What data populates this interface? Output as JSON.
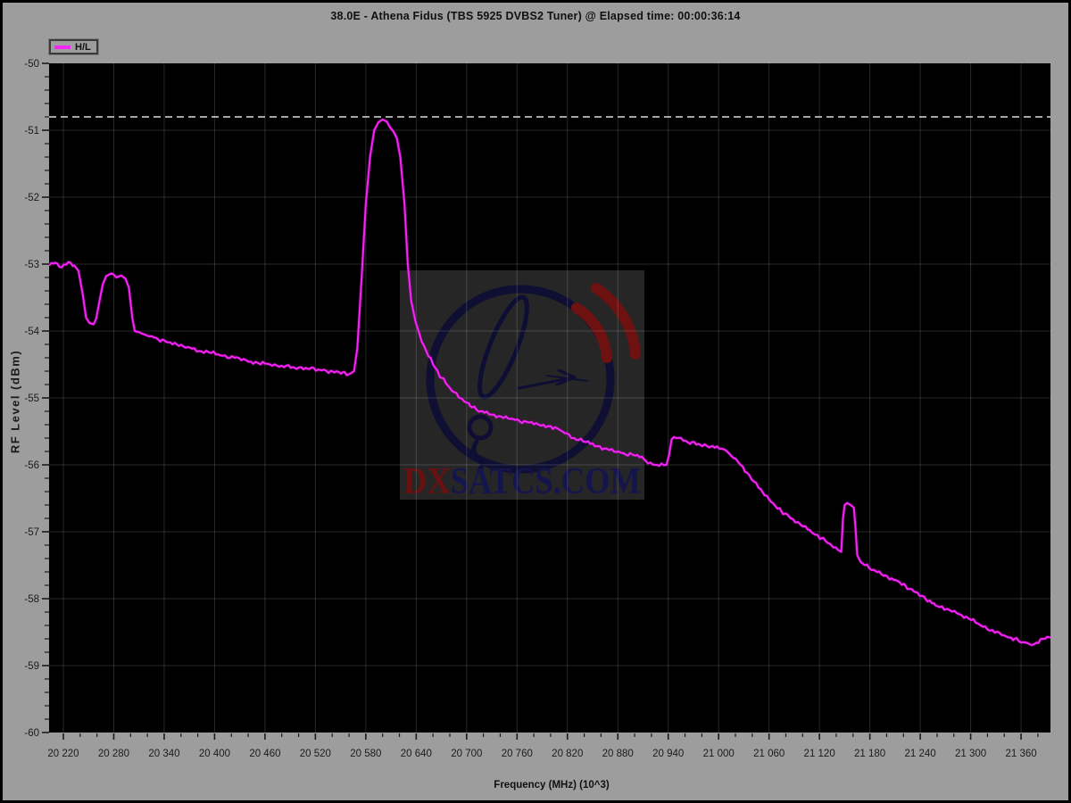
{
  "window": {
    "title": "38.0E - Athena Fidus (TBS 5925 DVBS2 Tuner) @ Elapsed time: 00:00:36:14"
  },
  "legend": {
    "label": "H/L",
    "swatch_color": "#f724f7"
  },
  "axes": {
    "x": {
      "label": "Frequency (MHz) (10^3)",
      "range": [
        20203,
        21395
      ],
      "major_tick_values": [
        20220,
        20280,
        20340,
        20400,
        20460,
        20520,
        20580,
        20640,
        20700,
        20760,
        20820,
        20880,
        20940,
        21000,
        21060,
        21120,
        21180,
        21240,
        21300,
        21360
      ],
      "major_tick_labels": [
        "20 220",
        "20 280",
        "20 340",
        "20 400",
        "20 460",
        "20 520",
        "20 580",
        "20 640",
        "20 700",
        "20 760",
        "20 820",
        "20 880",
        "20 940",
        "21 000",
        "21 060",
        "21 120",
        "21 180",
        "21 240",
        "21 300",
        "21 360"
      ],
      "minor_step": 20
    },
    "y": {
      "label": "RF Level (dBm)",
      "range": [
        -60,
        -50
      ],
      "major_tick_values": [
        -50,
        -51,
        -52,
        -53,
        -54,
        -55,
        -56,
        -57,
        -58,
        -59,
        -60
      ],
      "major_tick_labels": [
        "-50",
        "-51",
        "-52",
        "-53",
        "-54",
        "-55",
        "-56",
        "-57",
        "-58",
        "-59",
        "-60"
      ],
      "minor_step": 0.2
    }
  },
  "threshold_line": {
    "value_dbm": -50.8,
    "style": "dashed",
    "color": "#dedede"
  },
  "watermark": {
    "text_dx": "DX",
    "text_rest": "SATCS.COM",
    "dx_color": "#691111",
    "rest_color": "#15154e",
    "box_color": "#262626",
    "logo_navy": "#0e0e34",
    "logo_red": "#6d1111"
  },
  "colors": {
    "page_bg": "#9d9d9d",
    "plot_bg": "#000000",
    "grid": "rgba(255,255,255,0.16)",
    "tick_text": "#1b1b1b",
    "trace": "#f724f7",
    "trace_glow": "#a800a8"
  },
  "chart_data": {
    "type": "line",
    "title": "38.0E - Athena Fidus (TBS 5925 DVBS2 Tuner) @ Elapsed time: 00:00:36:14",
    "xlabel": "Frequency (MHz) (10^3)",
    "ylabel": "RF Level (dBm)",
    "xlim": [
      20203,
      21395
    ],
    "ylim": [
      -60,
      -50
    ],
    "grid": true,
    "legend_position": "top-left",
    "threshold_dbm": -50.8,
    "render_hints": {
      "noise_db": 0.035,
      "steep_slope_cutoff": 0.04
    },
    "series": [
      {
        "name": "H/L",
        "points": [
          [
            20203,
            -53.02
          ],
          [
            20210,
            -52.98
          ],
          [
            20218,
            -53.05
          ],
          [
            20226,
            -52.97
          ],
          [
            20233,
            -53.02
          ],
          [
            20238,
            -53.1
          ],
          [
            20243,
            -53.45
          ],
          [
            20247,
            -53.8
          ],
          [
            20251,
            -53.88
          ],
          [
            20256,
            -53.9
          ],
          [
            20259,
            -53.82
          ],
          [
            20263,
            -53.55
          ],
          [
            20267,
            -53.3
          ],
          [
            20271,
            -53.18
          ],
          [
            20277,
            -53.14
          ],
          [
            20283,
            -53.2
          ],
          [
            20289,
            -53.17
          ],
          [
            20294,
            -53.22
          ],
          [
            20298,
            -53.35
          ],
          [
            20302,
            -53.8
          ],
          [
            20305,
            -54.0
          ],
          [
            20312,
            -54.03
          ],
          [
            20320,
            -54.07
          ],
          [
            20330,
            -54.1
          ],
          [
            20342,
            -54.16
          ],
          [
            20355,
            -54.2
          ],
          [
            20368,
            -54.24
          ],
          [
            20382,
            -54.3
          ],
          [
            20396,
            -54.33
          ],
          [
            20410,
            -54.37
          ],
          [
            20424,
            -54.4
          ],
          [
            20438,
            -54.44
          ],
          [
            20452,
            -54.48
          ],
          [
            20466,
            -54.5
          ],
          [
            20480,
            -54.52
          ],
          [
            20495,
            -54.55
          ],
          [
            20510,
            -54.56
          ],
          [
            20525,
            -54.58
          ],
          [
            20540,
            -54.6
          ],
          [
            20552,
            -54.62
          ],
          [
            20561,
            -54.64
          ],
          [
            20566,
            -54.6
          ],
          [
            20570,
            -54.25
          ],
          [
            20575,
            -53.2
          ],
          [
            20580,
            -52.1
          ],
          [
            20585,
            -51.4
          ],
          [
            20590,
            -51.0
          ],
          [
            20595,
            -50.88
          ],
          [
            20600,
            -50.84
          ],
          [
            20605,
            -50.87
          ],
          [
            20609,
            -50.96
          ],
          [
            20613,
            -51.02
          ],
          [
            20617,
            -51.12
          ],
          [
            20621,
            -51.4
          ],
          [
            20626,
            -52.1
          ],
          [
            20630,
            -53.0
          ],
          [
            20634,
            -53.55
          ],
          [
            20639,
            -53.85
          ],
          [
            20644,
            -54.05
          ],
          [
            20652,
            -54.3
          ],
          [
            20660,
            -54.5
          ],
          [
            20670,
            -54.7
          ],
          [
            20680,
            -54.85
          ],
          [
            20692,
            -55.0
          ],
          [
            20704,
            -55.12
          ],
          [
            20716,
            -55.2
          ],
          [
            20730,
            -55.25
          ],
          [
            20744,
            -55.3
          ],
          [
            20758,
            -55.33
          ],
          [
            20772,
            -55.36
          ],
          [
            20786,
            -55.4
          ],
          [
            20800,
            -55.42
          ],
          [
            20814,
            -55.5
          ],
          [
            20828,
            -55.6
          ],
          [
            20842,
            -55.66
          ],
          [
            20856,
            -55.72
          ],
          [
            20870,
            -55.78
          ],
          [
            20884,
            -55.82
          ],
          [
            20898,
            -55.85
          ],
          [
            20910,
            -55.9
          ],
          [
            20916,
            -55.98
          ],
          [
            20924,
            -56.0
          ],
          [
            20932,
            -55.98
          ],
          [
            20938,
            -56.0
          ],
          [
            20941,
            -55.85
          ],
          [
            20944,
            -55.62
          ],
          [
            20950,
            -55.6
          ],
          [
            20958,
            -55.64
          ],
          [
            20968,
            -55.66
          ],
          [
            20978,
            -55.7
          ],
          [
            20990,
            -55.73
          ],
          [
            21002,
            -55.76
          ],
          [
            21010,
            -55.8
          ],
          [
            21018,
            -55.9
          ],
          [
            21026,
            -56.0
          ],
          [
            21034,
            -56.12
          ],
          [
            21042,
            -56.25
          ],
          [
            21052,
            -56.4
          ],
          [
            21062,
            -56.55
          ],
          [
            21074,
            -56.68
          ],
          [
            21086,
            -56.8
          ],
          [
            21098,
            -56.9
          ],
          [
            21110,
            -57.0
          ],
          [
            21122,
            -57.1
          ],
          [
            21134,
            -57.2
          ],
          [
            21142,
            -57.27
          ],
          [
            21146,
            -57.3
          ],
          [
            21148,
            -56.8
          ],
          [
            21150,
            -56.6
          ],
          [
            21153,
            -56.57
          ],
          [
            21157,
            -56.6
          ],
          [
            21161,
            -56.64
          ],
          [
            21163,
            -56.95
          ],
          [
            21165,
            -57.35
          ],
          [
            21169,
            -57.45
          ],
          [
            21174,
            -57.5
          ],
          [
            21186,
            -57.58
          ],
          [
            21198,
            -57.65
          ],
          [
            21210,
            -57.72
          ],
          [
            21222,
            -57.8
          ],
          [
            21234,
            -57.9
          ],
          [
            21246,
            -58.0
          ],
          [
            21258,
            -58.1
          ],
          [
            21270,
            -58.16
          ],
          [
            21284,
            -58.22
          ],
          [
            21298,
            -58.3
          ],
          [
            21312,
            -58.4
          ],
          [
            21326,
            -58.47
          ],
          [
            21340,
            -58.55
          ],
          [
            21352,
            -58.6
          ],
          [
            21362,
            -58.65
          ],
          [
            21370,
            -58.68
          ],
          [
            21378,
            -58.66
          ],
          [
            21386,
            -58.6
          ],
          [
            21395,
            -58.58
          ]
        ]
      }
    ]
  }
}
